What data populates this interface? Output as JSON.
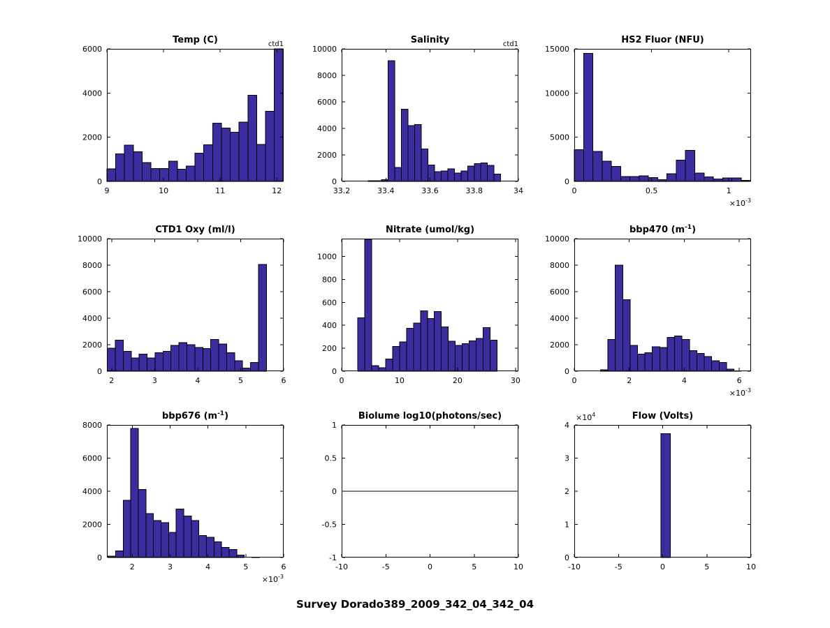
{
  "figure_title": "Survey Dorado389_2009_342_04_342_04",
  "style": {
    "bar_fill": "#3b2ca0",
    "bar_edge": "#000000",
    "axis_color": "#000000",
    "background": "#ffffff"
  },
  "chart_data": [
    {
      "type": "bar",
      "title": "Temp (C)",
      "annotation": "ctd1",
      "xlim": [
        9,
        12.12
      ],
      "ylim": [
        0,
        6000
      ],
      "xticks": [
        9,
        10,
        11,
        12
      ],
      "yticks": [
        0,
        2000,
        4000,
        6000
      ],
      "grid": false,
      "bin_start": 9.0,
      "bin_width": 0.1555,
      "values": [
        570,
        1250,
        1640,
        1340,
        850,
        590,
        590,
        920,
        560,
        690,
        1280,
        1660,
        2640,
        2420,
        2220,
        2680,
        3900,
        1680,
        3180,
        6000
      ]
    },
    {
      "type": "bar",
      "title": "Salinity",
      "annotation": "ctd1",
      "xlim": [
        33.2,
        34
      ],
      "ylim": [
        0,
        10000
      ],
      "xticks": [
        33.2,
        33.4,
        33.6,
        33.8,
        34
      ],
      "yticks": [
        0,
        2000,
        4000,
        6000,
        8000,
        10000
      ],
      "grid": false,
      "bin_start": 33.32,
      "bin_width": 0.03,
      "values": [
        50,
        60,
        120,
        9100,
        1050,
        5450,
        4200,
        4300,
        2450,
        1250,
        750,
        800,
        950,
        620,
        800,
        1150,
        1350,
        1400,
        1200,
        550
      ]
    },
    {
      "type": "bar",
      "title": "HS2 Fluor (NFU)",
      "x_exponent": "×10^{-3}",
      "x_units_multiplier": "1e-3",
      "xlim": [
        0,
        1.144
      ],
      "ylim": [
        0,
        15000
      ],
      "xticks": [
        0,
        0.5,
        1
      ],
      "yticks": [
        0,
        5000,
        10000,
        15000
      ],
      "grid": false,
      "bin_start": 0.0,
      "bin_width": 0.06,
      "values": [
        3600,
        14500,
        3400,
        2300,
        1700,
        550,
        550,
        650,
        420,
        180,
        850,
        2400,
        3500,
        950,
        510,
        260,
        385,
        385,
        130
      ]
    },
    {
      "type": "bar",
      "title": "CTD1 Oxy (ml/l)",
      "xlim": [
        1.89,
        6.0
      ],
      "ylim": [
        0,
        10000
      ],
      "xticks": [
        2,
        3,
        4,
        5,
        6
      ],
      "yticks": [
        0,
        2000,
        4000,
        6000,
        8000,
        10000
      ],
      "grid": false,
      "bin_start": 1.9,
      "bin_width": 0.185,
      "values": [
        1750,
        2350,
        1500,
        1000,
        1300,
        1000,
        1400,
        1500,
        1950,
        2150,
        2000,
        1800,
        1700,
        2400,
        2050,
        1400,
        800,
        250,
        650,
        8050
      ]
    },
    {
      "type": "bar",
      "title": "Nitrate (umol/kg)",
      "xlim": [
        0,
        30.5
      ],
      "ylim": [
        0,
        1155
      ],
      "xticks": [
        0,
        10,
        20,
        30
      ],
      "yticks": [
        0,
        200,
        400,
        600,
        800,
        1000
      ],
      "grid": false,
      "bin_start": 2.8,
      "bin_width": 1.2,
      "values": [
        465,
        1150,
        50,
        30,
        105,
        215,
        255,
        375,
        420,
        525,
        460,
        520,
        385,
        260,
        225,
        240,
        265,
        285,
        380,
        270
      ]
    },
    {
      "type": "bar",
      "title": "bbp470 (m^{-1})",
      "x_exponent": "×10^{-3}",
      "x_units_multiplier": "1e-3",
      "xlim": [
        0,
        6.43
      ],
      "ylim": [
        0,
        10000
      ],
      "xticks": [
        0,
        2,
        4,
        6
      ],
      "yticks": [
        0,
        2000,
        4000,
        6000,
        8000,
        10000
      ],
      "grid": false,
      "bin_start": 0.95,
      "bin_width": 0.27,
      "values": [
        100,
        2400,
        8000,
        5400,
        1950,
        1300,
        1400,
        1850,
        1800,
        2550,
        2650,
        2400,
        1550,
        1350,
        1100,
        800,
        650,
        150,
        30
      ]
    },
    {
      "type": "bar",
      "title": "bbp676 (m^{-1})",
      "x_exponent": "×10^{-3}",
      "x_units_multiplier": "1e-3",
      "xlim": [
        1.33,
        6.0
      ],
      "ylim": [
        0,
        8000
      ],
      "xticks": [
        2,
        3,
        4,
        5,
        6
      ],
      "yticks": [
        0,
        2000,
        4000,
        6000,
        8000
      ],
      "grid": false,
      "bin_start": 1.36,
      "bin_width": 0.2,
      "values": [
        85,
        390,
        3450,
        7800,
        4110,
        2660,
        2240,
        2110,
        1510,
        2930,
        2500,
        2240,
        1320,
        1220,
        940,
        620,
        490,
        140,
        0,
        30
      ]
    },
    {
      "type": "line",
      "title": "Biolume log10(photons/sec)",
      "xlim": [
        -10,
        10
      ],
      "ylim": [
        -1,
        1
      ],
      "xticks": [
        -10,
        -5,
        0,
        5,
        10
      ],
      "yticks": [
        -1,
        -0.5,
        0,
        0.5,
        1
      ],
      "grid": false,
      "line": {
        "y": 0,
        "x_start": -10,
        "x_end": 9.6
      }
    },
    {
      "type": "bar",
      "title": "Flow (Volts)",
      "y_exponent": "×10^{4}",
      "y_units_multiplier": "1e4",
      "xlim": [
        -10,
        10
      ],
      "ylim": [
        0,
        40000
      ],
      "xticks": [
        -10,
        -5,
        0,
        5,
        10
      ],
      "yticks": [
        0,
        10000,
        20000,
        30000,
        40000
      ],
      "ytick_labels": [
        "0",
        "1",
        "2",
        "3",
        "4"
      ],
      "grid": false,
      "bin_start": -0.2,
      "bin_width": 1.05,
      "values": [
        37400
      ]
    }
  ]
}
